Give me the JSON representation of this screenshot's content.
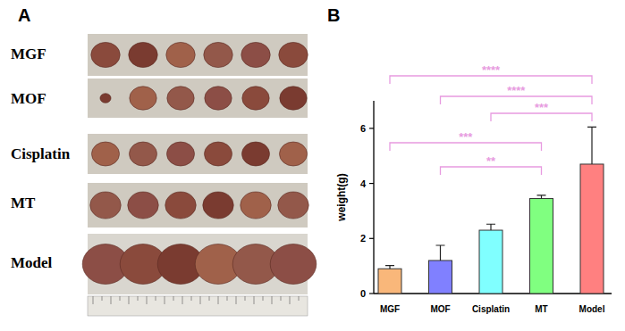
{
  "panel_labels": [
    "A",
    "B"
  ],
  "photo_rows": [
    "MGF",
    "MOF",
    "Cisplatin",
    "MT",
    "Model"
  ],
  "chart_data": {
    "type": "bar",
    "y_label": "weight(g)",
    "categories": [
      "MGF",
      "MOF",
      "Cisplatin",
      "MT",
      "Model"
    ],
    "values": [
      0.9,
      1.2,
      2.3,
      3.45,
      4.7
    ],
    "errors": [
      0.12,
      0.55,
      0.22,
      0.12,
      1.35
    ],
    "colors": [
      "#f9b77a",
      "#8080ff",
      "#80ffff",
      "#80ff80",
      "#ff8080"
    ],
    "ylim": [
      0,
      7
    ],
    "yticks": [
      0,
      2,
      4,
      6
    ],
    "annotations": [
      {
        "from": 0,
        "to": 4,
        "text": "****"
      },
      {
        "from": 1,
        "to": 4,
        "text": "****"
      },
      {
        "from": 2,
        "to": 4,
        "text": "***"
      },
      {
        "from": 0,
        "to": 3,
        "text": "***"
      },
      {
        "from": 1,
        "to": 3,
        "text": "**"
      }
    ]
  }
}
